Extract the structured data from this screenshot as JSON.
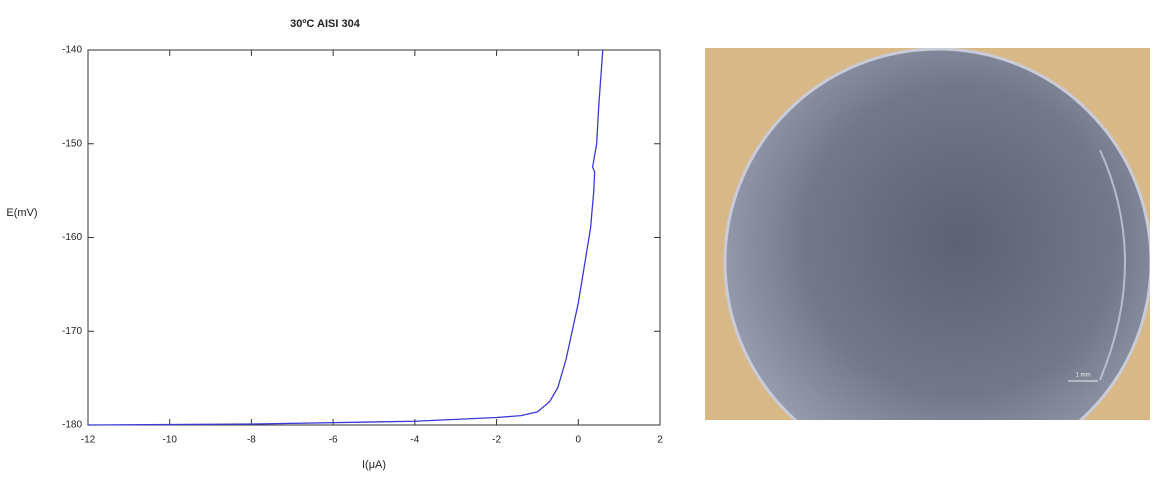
{
  "chart_data": {
    "type": "line",
    "title": "30ºC AISI 304",
    "x_label": "I(μA)",
    "y_label": "E(mV)",
    "x": [
      -12,
      -8,
      -4,
      -2,
      -1.4,
      -1,
      -0.7,
      -0.5,
      -0.3,
      -0.15,
      0,
      0.15,
      0.3,
      0.38,
      0.4,
      0.35,
      0.45,
      0.5,
      0.6
    ],
    "values": [
      -180,
      -179.9,
      -179.6,
      -179.2,
      -179,
      -178.6,
      -177.5,
      -176,
      -173,
      -170,
      -167,
      -163,
      -159,
      -155,
      -153,
      -152.5,
      -150,
      -146,
      -140
    ],
    "color": "#3a3ad6",
    "xlim": [
      -12,
      2
    ],
    "xticks": [
      -12,
      -10,
      -8,
      -6,
      -4,
      -2,
      0,
      2
    ],
    "ylim": [
      -180,
      -140
    ],
    "yticks": [
      -180,
      -170,
      -160,
      -150,
      -140
    ]
  },
  "image": {
    "scale_label": "1 mm"
  }
}
